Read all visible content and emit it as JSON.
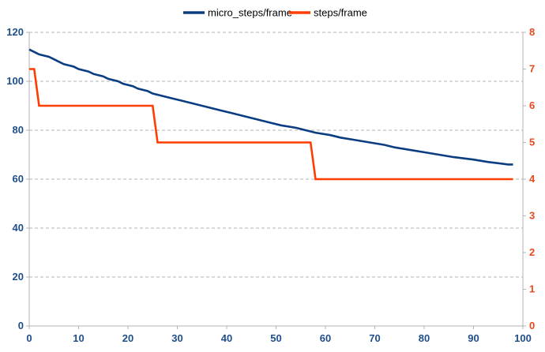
{
  "chart_data": {
    "type": "line",
    "title": "",
    "xlabel": "",
    "ylabel": "",
    "y2label": "",
    "xlim": [
      0,
      100
    ],
    "ylim": [
      0,
      120
    ],
    "y2lim": [
      0,
      8
    ],
    "x_ticks": [
      0,
      10,
      20,
      30,
      40,
      50,
      60,
      70,
      80,
      90,
      100
    ],
    "y_ticks": [
      0,
      20,
      40,
      60,
      80,
      100,
      120
    ],
    "y2_ticks": [
      0,
      1,
      2,
      3,
      4,
      5,
      6,
      7,
      8
    ],
    "grid": "horizontal-dashed",
    "legend": "top-center",
    "series": [
      {
        "name": "micro_steps/frame",
        "axis": "left",
        "color": "#0b3d82",
        "step_points": [
          [
            0,
            113
          ],
          [
            1,
            112
          ],
          [
            2,
            111
          ],
          [
            4,
            110
          ],
          [
            5,
            109
          ],
          [
            6,
            108
          ],
          [
            7,
            107
          ],
          [
            9,
            106
          ],
          [
            10,
            105
          ],
          [
            12,
            104
          ],
          [
            13,
            103
          ],
          [
            15,
            102
          ],
          [
            16,
            101
          ],
          [
            18,
            100
          ],
          [
            19,
            99
          ],
          [
            21,
            98
          ],
          [
            22,
            97
          ],
          [
            24,
            96
          ],
          [
            25,
            95
          ],
          [
            27,
            94
          ],
          [
            29,
            93
          ],
          [
            31,
            92
          ],
          [
            33,
            91
          ],
          [
            35,
            90
          ],
          [
            37,
            89
          ],
          [
            39,
            88
          ],
          [
            41,
            87
          ],
          [
            43,
            86
          ],
          [
            45,
            85
          ],
          [
            47,
            84
          ],
          [
            49,
            83
          ],
          [
            51,
            82
          ],
          [
            54,
            81
          ],
          [
            56,
            80
          ],
          [
            58,
            79
          ],
          [
            61,
            78
          ],
          [
            63,
            77
          ],
          [
            66,
            76
          ],
          [
            69,
            75
          ],
          [
            72,
            74
          ],
          [
            74,
            73
          ],
          [
            77,
            72
          ],
          [
            80,
            71
          ],
          [
            83,
            70
          ],
          [
            86,
            69
          ],
          [
            90,
            68
          ],
          [
            93,
            67
          ],
          [
            97,
            66
          ],
          [
            98,
            66
          ]
        ]
      },
      {
        "name": "steps/frame",
        "axis": "right",
        "color": "#ff3d00",
        "step_points": [
          [
            0,
            7
          ],
          [
            1,
            7
          ],
          [
            2,
            6
          ],
          [
            25,
            6
          ],
          [
            26,
            5
          ],
          [
            57,
            5
          ],
          [
            58,
            4
          ],
          [
            98,
            4
          ]
        ]
      }
    ]
  }
}
